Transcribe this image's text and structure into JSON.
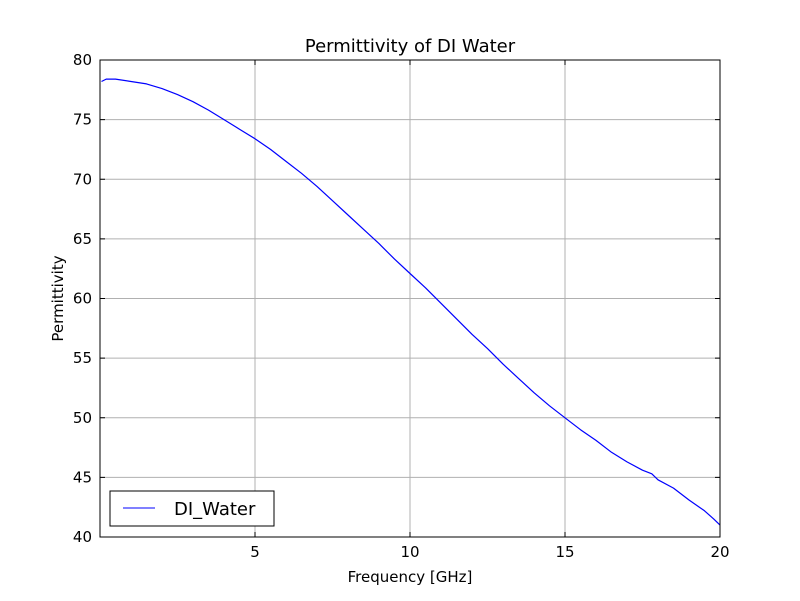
{
  "chart_data": {
    "type": "line",
    "title": "Permittivity of DI Water",
    "xlabel": "Frequency [GHz]",
    "ylabel": "Permittivity",
    "xlim": [
      0,
      20
    ],
    "ylim": [
      40,
      80
    ],
    "grid": true,
    "legend_position": "lower-left",
    "x_ticks": [
      5,
      10,
      15,
      20
    ],
    "x_tick_labels": [
      "5",
      "10",
      "15",
      "20"
    ],
    "y_ticks": [
      40,
      45,
      50,
      55,
      60,
      65,
      70,
      75,
      80
    ],
    "y_tick_labels": [
      "40",
      "45",
      "50",
      "55",
      "60",
      "65",
      "70",
      "75",
      "80"
    ],
    "series": [
      {
        "name": "DI_Water",
        "color": "#0000ff",
        "x": [
          0.05,
          0.2,
          0.5,
          1.0,
          1.5,
          2.0,
          2.5,
          3.0,
          3.5,
          4.0,
          4.5,
          5.0,
          5.5,
          6.0,
          6.5,
          7.0,
          7.5,
          8.0,
          8.5,
          9.0,
          9.5,
          10.0,
          10.5,
          11.0,
          11.5,
          12.0,
          12.5,
          13.0,
          13.5,
          14.0,
          14.5,
          15.0,
          15.5,
          16.0,
          16.5,
          17.0,
          17.5,
          17.8,
          18.0,
          18.5,
          19.0,
          19.5,
          19.8,
          20.0
        ],
        "y": [
          78.2,
          78.4,
          78.4,
          78.2,
          78.0,
          77.6,
          77.1,
          76.5,
          75.8,
          75.0,
          74.2,
          73.4,
          72.5,
          71.5,
          70.5,
          69.4,
          68.2,
          67.0,
          65.8,
          64.6,
          63.3,
          62.1,
          60.9,
          59.6,
          58.3,
          57.0,
          55.8,
          54.5,
          53.3,
          52.1,
          51.0,
          50.0,
          49.0,
          48.1,
          47.1,
          46.3,
          45.6,
          45.3,
          44.8,
          44.1,
          43.1,
          42.2,
          41.5,
          41.0
        ]
      }
    ]
  }
}
